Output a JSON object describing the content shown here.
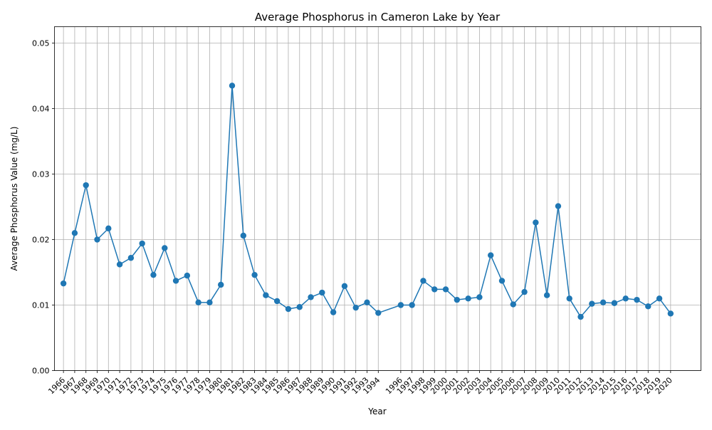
{
  "chart_data": {
    "type": "line",
    "title": "Average Phosphorus in Cameron Lake by Year",
    "xlabel": "Year",
    "ylabel": "Average Phosphorus Value (mg/L)",
    "ylim": [
      0,
      0.0525
    ],
    "xlim": [
      1965.2,
      2022.7
    ],
    "grid": true,
    "legend": "none",
    "color": "#1f77b4",
    "yticks": [
      0.0,
      0.01,
      0.02,
      0.03,
      0.04,
      0.05
    ],
    "ytick_labels": [
      "0.00",
      "0.01",
      "0.02",
      "0.03",
      "0.04",
      "0.05"
    ],
    "x": [
      1966,
      1967,
      1968,
      1969,
      1970,
      1971,
      1972,
      1973,
      1974,
      1975,
      1976,
      1977,
      1978,
      1979,
      1980,
      1981,
      1982,
      1983,
      1984,
      1985,
      1986,
      1987,
      1988,
      1989,
      1990,
      1991,
      1992,
      1993,
      1994,
      1996,
      1997,
      1998,
      1999,
      2000,
      2001,
      2002,
      2003,
      2004,
      2005,
      2006,
      2007,
      2008,
      2009,
      2010,
      2011,
      2012,
      2013,
      2014,
      2015,
      2016,
      2017,
      2018,
      2019,
      2020
    ],
    "xtick_labels": [
      "1966",
      "1967",
      "1968",
      "1969",
      "1970",
      "1971",
      "1972",
      "1973",
      "1974",
      "1975",
      "1976",
      "1977",
      "1978",
      "1979",
      "1980",
      "1981",
      "1982",
      "1983",
      "1984",
      "1985",
      "1986",
      "1987",
      "1988",
      "1989",
      "1990",
      "1991",
      "1992",
      "1993",
      "1994",
      "1996",
      "1997",
      "1998",
      "1999",
      "2000",
      "2001",
      "2002",
      "2003",
      "2004",
      "2005",
      "2006",
      "2007",
      "2008",
      "2009",
      "2010",
      "2011",
      "2012",
      "2013",
      "2014",
      "2015",
      "2016",
      "2017",
      "2018",
      "2019",
      "2020"
    ],
    "values": [
      0.0133,
      0.021,
      0.0283,
      0.02,
      0.0217,
      0.0162,
      0.0172,
      0.0194,
      0.0146,
      0.0187,
      0.0137,
      0.0145,
      0.0104,
      0.0104,
      0.0131,
      0.0435,
      0.0206,
      0.0146,
      0.0115,
      0.0106,
      0.0094,
      0.0097,
      0.0112,
      0.0119,
      0.0089,
      0.0129,
      0.0096,
      0.0104,
      0.0088,
      0.01,
      0.01,
      0.0137,
      0.0124,
      0.0124,
      0.0108,
      0.011,
      0.0112,
      0.0176,
      0.0137,
      0.0101,
      0.012,
      0.0226,
      0.0115,
      0.0251,
      0.011,
      0.0082,
      0.0102,
      0.0104,
      0.0103,
      0.011,
      0.0108,
      0.0098,
      0.011,
      0.0087
    ]
  }
}
